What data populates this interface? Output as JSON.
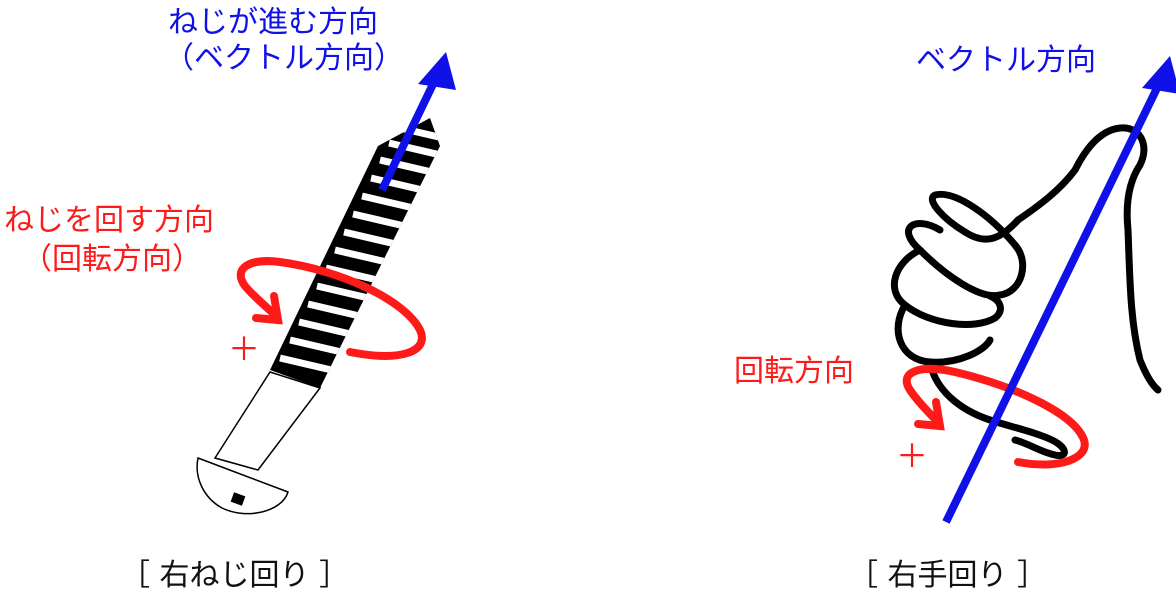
{
  "left": {
    "vector_label_line1": "ねじが進む方向",
    "vector_label_line2": "（ベクトル方向）",
    "rotation_label_line1": "ねじを回す方向",
    "rotation_label_line2": "（回転方向）",
    "plus": "＋",
    "caption": "［ 右ねじ回り ］"
  },
  "right": {
    "vector_label": "ベクトル方向",
    "rotation_label": "回転方向",
    "plus": "＋",
    "caption": "［ 右手回り ］"
  },
  "colors": {
    "vector": "#1010e8",
    "rotation": "#ff1a1a",
    "line": "#000000"
  },
  "icons": [
    "screw-icon",
    "right-hand-icon"
  ]
}
